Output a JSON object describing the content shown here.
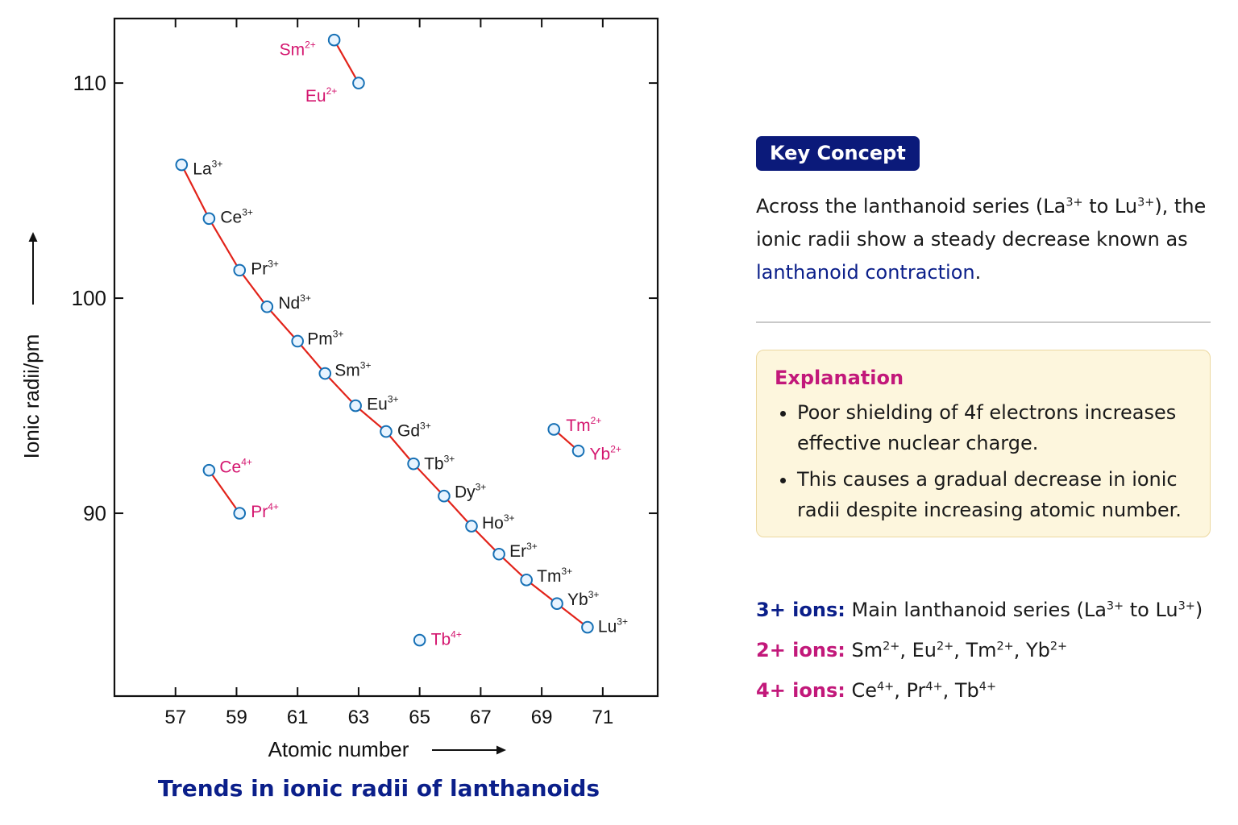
{
  "chart_data": {
    "type": "scatter",
    "title": "Trends in ionic radii of lanthanoids",
    "xlabel": "Atomic number",
    "ylabel": "Ionic radii/pm",
    "xlim": [
      55,
      72.8
    ],
    "ylim": [
      81.5,
      113
    ],
    "xticks": [
      57,
      59,
      61,
      63,
      65,
      67,
      69,
      71
    ],
    "yticks": [
      90,
      100,
      110
    ],
    "grid": false,
    "colors": {
      "line": "#e2231a",
      "marker_edge": "#1670b5",
      "marker_fill": "#e8f4ff",
      "label_3plus": "#1a1a1a",
      "label_other": "#d4166f"
    },
    "series": [
      {
        "name": "3+ ions",
        "connected": true,
        "points": [
          {
            "ion": "La",
            "charge": "3+",
            "x": 57.2,
            "y": 106.2
          },
          {
            "ion": "Ce",
            "charge": "3+",
            "x": 58.1,
            "y": 103.7
          },
          {
            "ion": "Pr",
            "charge": "3+",
            "x": 59.1,
            "y": 101.3
          },
          {
            "ion": "Nd",
            "charge": "3+",
            "x": 60.0,
            "y": 99.6
          },
          {
            "ion": "Pm",
            "charge": "3+",
            "x": 61.0,
            "y": 98.0
          },
          {
            "ion": "Sm",
            "charge": "3+",
            "x": 61.9,
            "y": 96.5
          },
          {
            "ion": "Eu",
            "charge": "3+",
            "x": 62.9,
            "y": 95.0
          },
          {
            "ion": "Gd",
            "charge": "3+",
            "x": 63.9,
            "y": 93.8
          },
          {
            "ion": "Tb",
            "charge": "3+",
            "x": 64.8,
            "y": 92.3
          },
          {
            "ion": "Dy",
            "charge": "3+",
            "x": 65.8,
            "y": 90.8
          },
          {
            "ion": "Ho",
            "charge": "3+",
            "x": 66.7,
            "y": 89.4
          },
          {
            "ion": "Er",
            "charge": "3+",
            "x": 67.6,
            "y": 88.1
          },
          {
            "ion": "Tm",
            "charge": "3+",
            "x": 68.5,
            "y": 86.9
          },
          {
            "ion": "Yb",
            "charge": "3+",
            "x": 69.5,
            "y": 85.8
          },
          {
            "ion": "Lu",
            "charge": "3+",
            "x": 70.5,
            "y": 84.7
          }
        ]
      },
      {
        "name": "2+ ions",
        "connected_pairs": [
          [
            0,
            1
          ],
          [
            2,
            3
          ]
        ],
        "points": [
          {
            "ion": "Sm",
            "charge": "2+",
            "x": 62.2,
            "y": 112.0
          },
          {
            "ion": "Eu",
            "charge": "2+",
            "x": 63.0,
            "y": 110.0
          },
          {
            "ion": "Tm",
            "charge": "2+",
            "x": 69.4,
            "y": 93.9
          },
          {
            "ion": "Yb",
            "charge": "2+",
            "x": 70.2,
            "y": 92.9
          }
        ]
      },
      {
        "name": "4+ ions",
        "connected_pairs": [
          [
            0,
            1
          ]
        ],
        "points": [
          {
            "ion": "Ce",
            "charge": "4+",
            "x": 58.1,
            "y": 92.0
          },
          {
            "ion": "Pr",
            "charge": "4+",
            "x": 59.1,
            "y": 90.0
          },
          {
            "ion": "Tb",
            "charge": "4+",
            "x": 65.0,
            "y": 84.1
          }
        ]
      }
    ]
  },
  "key_concept": {
    "badge": "Key Concept",
    "text_1": "Across the lanthanoid series (La",
    "sup_1": "3+",
    "text_2": " to Lu",
    "sup_2": "3+",
    "text_3": "), the ionic radii show a steady decrease known as ",
    "highlight": "lanthanoid contraction",
    "text_4": "."
  },
  "explanation": {
    "title": "Explanation",
    "bullets": [
      "Poor shielding of 4f electrons increases effective nuclear charge.",
      "This causes a gradual decrease in ionic radii despite increasing atomic number."
    ]
  },
  "ion_legend": [
    {
      "label": "3+ ions:",
      "color": "#0b1f8a",
      "items": [
        {
          "text": " Main lanthanoid series (La",
          "sup": "3+"
        },
        {
          "text": " to Lu",
          "sup": "3+"
        },
        {
          "text": ")",
          "sup": ""
        }
      ]
    },
    {
      "label": "2+ ions:",
      "color": "#c2187a",
      "items": [
        {
          "text": " Sm",
          "sup": "2+"
        },
        {
          "text": ", Eu",
          "sup": "2+"
        },
        {
          "text": ", Tm",
          "sup": "2+"
        },
        {
          "text": ", Yb",
          "sup": "2+"
        }
      ]
    },
    {
      "label": "4+ ions:",
      "color": "#c2187a",
      "items": [
        {
          "text": " Ce",
          "sup": "4+"
        },
        {
          "text": ", Pr",
          "sup": "4+"
        },
        {
          "text": ", Tb",
          "sup": "4+"
        }
      ]
    }
  ]
}
